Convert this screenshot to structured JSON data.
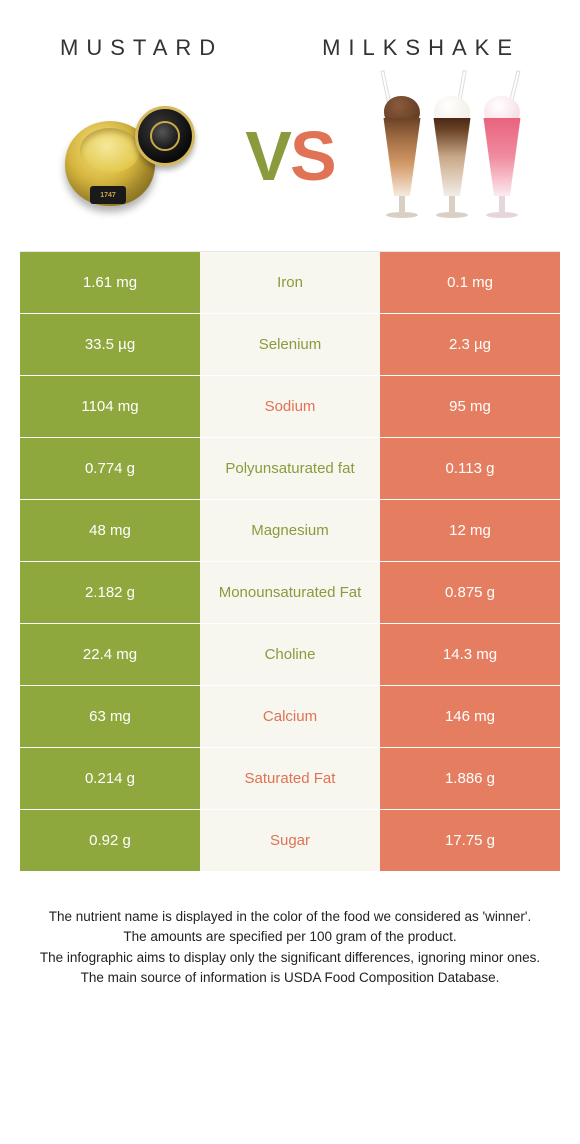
{
  "header": {
    "left_title": "MUSTARD",
    "right_title": "MILKSHAKE",
    "left_image_label": "1747"
  },
  "vs": {
    "v": "V",
    "s": "S"
  },
  "colors": {
    "left_col": "#8fa83e",
    "right_col": "#e57e61",
    "mid_bg": "#f7f7ef",
    "left_text": "#8a9b3e",
    "right_text": "#e07256",
    "footer_text": "#222222"
  },
  "table": {
    "rows": [
      {
        "left": "1.61 mg",
        "label": "Iron",
        "right": "0.1 mg",
        "winner": "left"
      },
      {
        "left": "33.5 µg",
        "label": "Selenium",
        "right": "2.3 µg",
        "winner": "left"
      },
      {
        "left": "1104 mg",
        "label": "Sodium",
        "right": "95 mg",
        "winner": "right"
      },
      {
        "left": "0.774 g",
        "label": "Polyunsaturated fat",
        "right": "0.113 g",
        "winner": "left"
      },
      {
        "left": "48 mg",
        "label": "Magnesium",
        "right": "12 mg",
        "winner": "left"
      },
      {
        "left": "2.182 g",
        "label": "Monounsaturated Fat",
        "right": "0.875 g",
        "winner": "left"
      },
      {
        "left": "22.4 mg",
        "label": "Choline",
        "right": "14.3 mg",
        "winner": "left"
      },
      {
        "left": "63 mg",
        "label": "Calcium",
        "right": "146 mg",
        "winner": "right"
      },
      {
        "left": "0.214 g",
        "label": "Saturated Fat",
        "right": "1.886 g",
        "winner": "right"
      },
      {
        "left": "0.92 g",
        "label": "Sugar",
        "right": "17.75 g",
        "winner": "right"
      }
    ]
  },
  "footer": {
    "line1": "The nutrient name is displayed in the color of the food we considered as 'winner'.",
    "line2": "The amounts are specified per 100 gram of the product.",
    "line3": "The infographic aims to display only the significant differences, ignoring minor ones.",
    "line4": "The main source of information is USDA Food Composition Database."
  }
}
